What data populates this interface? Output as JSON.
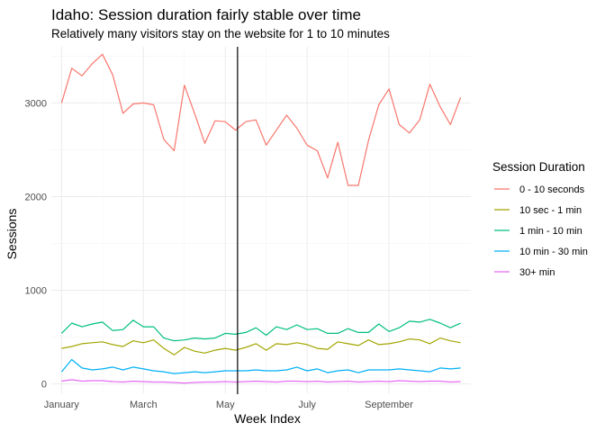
{
  "chart_data": {
    "type": "line",
    "title": "Idaho: Session duration fairly stable over time",
    "subtitle": "Relatively many visitors stay on the website for 1 to 10 minutes",
    "xlabel": "Week Index",
    "ylabel": "Sessions",
    "x_ticks": [
      {
        "label": "January",
        "week": 1
      },
      {
        "label": "March",
        "week": 9
      },
      {
        "label": "May",
        "week": 17
      },
      {
        "label": "July",
        "week": 25
      },
      {
        "label": "September",
        "week": 33
      }
    ],
    "xlim": [
      0,
      41
    ],
    "ylim": [
      -100,
      3600
    ],
    "y_ticks": [
      0,
      1000,
      2000,
      3000
    ],
    "vline_week": 18.2,
    "grid": true,
    "legend": {
      "title": "Session Duration",
      "position": "right"
    },
    "x": [
      1,
      2,
      3,
      4,
      5,
      6,
      7,
      8,
      9,
      10,
      11,
      12,
      13,
      14,
      15,
      16,
      17,
      18,
      19,
      20,
      21,
      22,
      23,
      24,
      25,
      26,
      27,
      28,
      29,
      30,
      31,
      32,
      33,
      34,
      35,
      36,
      37,
      38,
      39,
      40
    ],
    "series": [
      {
        "name": "0 - 10 seconds",
        "color": "#F8766D",
        "values": [
          3000,
          3370,
          3290,
          3420,
          3520,
          3300,
          2890,
          2990,
          3000,
          2980,
          2610,
          2490,
          3190,
          2890,
          2570,
          2810,
          2800,
          2710,
          2800,
          2820,
          2550,
          2710,
          2870,
          2730,
          2550,
          2490,
          2200,
          2580,
          2120,
          2120,
          2600,
          2980,
          3150,
          2770,
          2680,
          2820,
          3200,
          2960,
          2770,
          3060
        ]
      },
      {
        "name": "10 sec - 1 min",
        "color": "#A3A500",
        "values": [
          380,
          400,
          430,
          440,
          450,
          420,
          400,
          460,
          440,
          470,
          380,
          310,
          390,
          350,
          330,
          360,
          380,
          360,
          390,
          430,
          360,
          430,
          420,
          440,
          420,
          380,
          370,
          450,
          430,
          410,
          470,
          420,
          430,
          450,
          480,
          470,
          430,
          490,
          460,
          440
        ]
      },
      {
        "name": "1 min - 10 min",
        "color": "#00BF7D",
        "values": [
          540,
          650,
          610,
          640,
          660,
          570,
          580,
          680,
          610,
          610,
          490,
          460,
          470,
          490,
          480,
          490,
          540,
          530,
          550,
          600,
          520,
          610,
          580,
          630,
          580,
          590,
          540,
          540,
          590,
          550,
          550,
          640,
          560,
          600,
          670,
          660,
          690,
          650,
          600,
          650
        ]
      },
      {
        "name": "10 min - 30 min",
        "color": "#00B0F6",
        "values": [
          130,
          260,
          170,
          150,
          160,
          180,
          150,
          180,
          160,
          140,
          130,
          110,
          120,
          130,
          120,
          130,
          140,
          140,
          140,
          150,
          140,
          140,
          150,
          180,
          140,
          160,
          120,
          140,
          150,
          120,
          150,
          150,
          150,
          160,
          150,
          140,
          130,
          170,
          160,
          170
        ]
      },
      {
        "name": "30+ min",
        "color": "#E76BF3",
        "values": [
          30,
          45,
          30,
          35,
          35,
          25,
          20,
          30,
          25,
          20,
          20,
          15,
          10,
          15,
          20,
          20,
          25,
          20,
          25,
          30,
          25,
          20,
          30,
          30,
          25,
          30,
          20,
          25,
          30,
          20,
          25,
          30,
          25,
          35,
          30,
          25,
          30,
          30,
          20,
          25
        ]
      }
    ]
  }
}
